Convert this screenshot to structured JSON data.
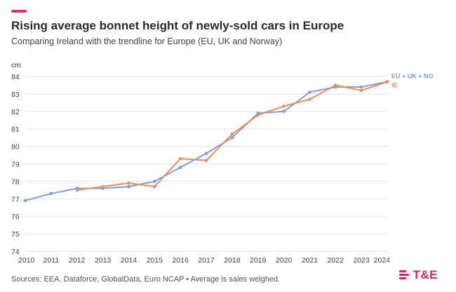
{
  "colors": {
    "accent": "#d6336c",
    "europe": "#7b9fe6",
    "ireland": "#f28a55",
    "grid": "#e3e3e3",
    "logo": "#e0245e"
  },
  "chart_data": {
    "type": "line",
    "title": "Rising average bonnet height of newly-sold cars in Europe",
    "subtitle": "Comparing Ireland with the trendline for Europe (EU, UK and Norway)",
    "ylabel": "cm",
    "ylim": [
      74,
      84
    ],
    "yticks": [
      "74",
      "75",
      "76",
      "77",
      "78",
      "79",
      "80",
      "81",
      "82",
      "83",
      "84"
    ],
    "x": [
      "2010",
      "2011",
      "2012",
      "2013",
      "2014",
      "2015",
      "2016",
      "2017",
      "2018",
      "2019",
      "2020",
      "2021",
      "2022",
      "2023",
      "2024"
    ],
    "series": [
      {
        "name": "EU + UK + NO",
        "values": [
          76.9,
          77.3,
          77.6,
          77.6,
          77.7,
          78.0,
          78.8,
          79.6,
          80.5,
          81.9,
          82.0,
          83.1,
          83.4,
          83.4,
          83.7
        ]
      },
      {
        "name": "IE",
        "values": [
          null,
          null,
          77.5,
          77.7,
          77.9,
          77.7,
          79.3,
          79.2,
          80.7,
          81.8,
          82.3,
          82.7,
          83.5,
          83.2,
          83.7
        ]
      }
    ],
    "source": "Sources: EEA, Dataforce, GlobalData, Euro NCAP • Average is sales weighed."
  },
  "logo": {
    "text": "T&E"
  }
}
